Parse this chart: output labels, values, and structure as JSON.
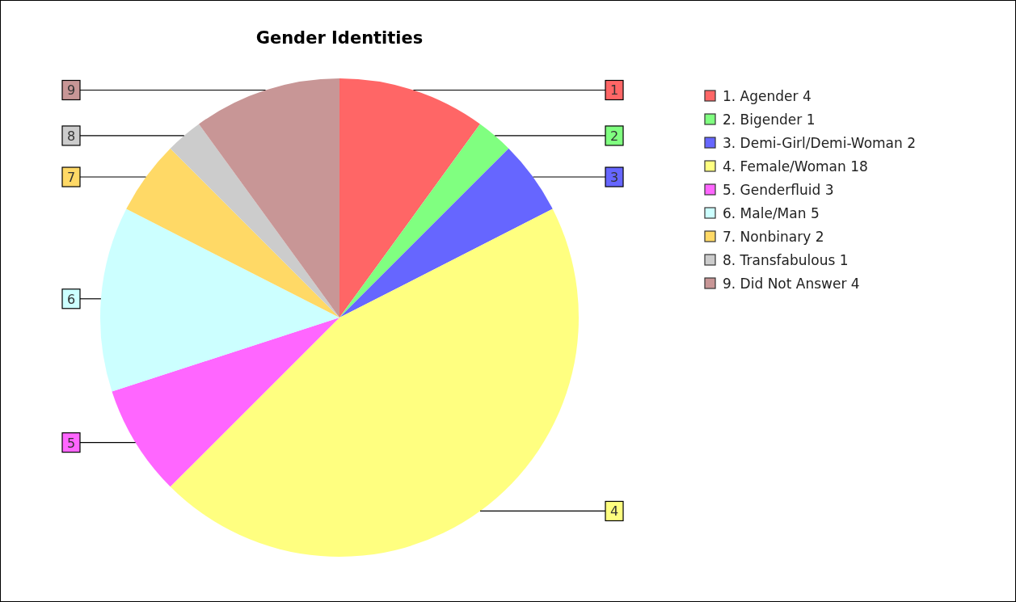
{
  "chart_data": {
    "type": "pie",
    "title": "Gender Identities",
    "categories": [
      "1. Agender 4",
      "2. Bigender 1",
      "3. Demi-Girl/Demi-Woman 2",
      "4. Female/Woman 18",
      "5. Genderfluid 3",
      "6. Male/Man 5",
      "7. Nonbinary 2",
      "8. Transfabulous 1",
      "9. Did Not Answer 4"
    ],
    "values": [
      4,
      1,
      2,
      18,
      3,
      5,
      2,
      1,
      4
    ],
    "annotations": [
      "1",
      "2",
      "3",
      "4",
      "5",
      "6",
      "7",
      "8",
      "9"
    ],
    "colors": [
      "#ff6666",
      "#80ff80",
      "#6666ff",
      "#ffff80",
      "#ff66ff",
      "#ccffff",
      "#ffd966",
      "#cccccc",
      "#c89696"
    ],
    "legend": "top right"
  }
}
